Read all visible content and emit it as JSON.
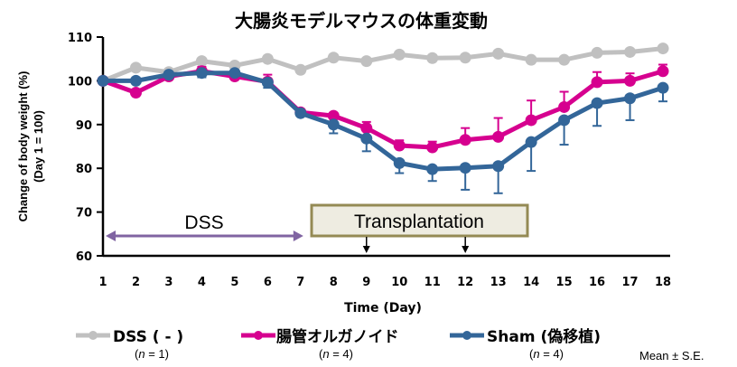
{
  "chart_data": {
    "type": "line",
    "title": "大腸炎モデルマウスの体重変動",
    "xlabel": "Time (Day)",
    "ylabel_line1": "Change of body weight (%)",
    "ylabel_line2": "(Day 1 = 100)",
    "ylim": [
      60,
      110
    ],
    "yticks": [
      60,
      70,
      80,
      90,
      100,
      110
    ],
    "x": [
      1,
      2,
      3,
      4,
      5,
      6,
      7,
      8,
      9,
      10,
      11,
      12,
      13,
      14,
      15,
      16,
      17,
      18
    ],
    "grid": false,
    "legend_position": "bottom",
    "series": [
      {
        "name": "DSS ( - )",
        "n_label": "(n = 1)",
        "color": "#c0c0c0",
        "values": [
          100,
          103,
          102,
          104.5,
          103.5,
          105,
          102.5,
          105.3,
          104.5,
          106,
          105.2,
          105.3,
          106.2,
          104.8,
          104.8,
          106.4,
          106.6,
          107.4
        ],
        "error": null,
        "error_dir": "none"
      },
      {
        "name": "腸管オルガノイド",
        "n_label": "(n = 4)",
        "color": "#d6008f",
        "values": [
          100,
          97.3,
          101,
          102.2,
          101,
          99.8,
          92.8,
          92,
          89.2,
          85.2,
          84.8,
          86.5,
          87.2,
          91,
          94,
          99.7,
          100,
          102.2
        ],
        "error": [
          0,
          0.6,
          0.5,
          1.0,
          0.8,
          1.6,
          0.5,
          0.6,
          1.4,
          1.2,
          1.3,
          2.7,
          4.3,
          4.5,
          3.5,
          2.3,
          1.7,
          1.5
        ],
        "error_dir": "up"
      },
      {
        "name": "Sham (偽移植)",
        "n_label": "(n = 4)",
        "color": "#336699",
        "values": [
          100,
          100,
          101.4,
          101.8,
          101.8,
          99.6,
          92.6,
          90,
          86.8,
          81.2,
          79.8,
          80.1,
          80.5,
          86,
          91,
          94.9,
          96,
          98.4
        ],
        "error": [
          0,
          0.5,
          0.5,
          1.0,
          0.5,
          1.2,
          0.5,
          2.0,
          2.9,
          2.3,
          2.7,
          5.0,
          6.2,
          6.6,
          5.6,
          5.2,
          5.0,
          3.1
        ],
        "error_dir": "down"
      }
    ],
    "annotations": {
      "dss_label": "DSS",
      "dss_range": [
        1,
        7
      ],
      "dss_color": "#8064a2",
      "transplant_label": "Transplantation",
      "transplant_days": [
        9,
        12
      ],
      "transplant_box_fill": "#eeece1",
      "transplant_box_border": "#948a54"
    },
    "footnote": "Mean ± S.E."
  }
}
